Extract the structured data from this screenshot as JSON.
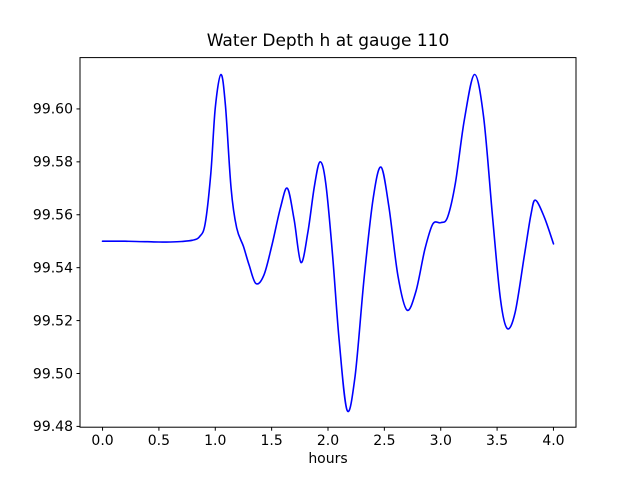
{
  "chart_data": {
    "type": "line",
    "title": "Water Depth h at gauge 110",
    "xlabel": "hours",
    "ylabel": "",
    "xlim": [
      -0.2,
      4.2
    ],
    "ylim": [
      99.4797,
      99.6194
    ],
    "xticks": [
      0.0,
      0.5,
      1.0,
      1.5,
      2.0,
      2.5,
      3.0,
      3.5,
      4.0
    ],
    "xtick_labels": [
      "0.0",
      "0.5",
      "1.0",
      "1.5",
      "2.0",
      "2.5",
      "3.0",
      "3.5",
      "4.0"
    ],
    "yticks": [
      99.48,
      99.5,
      99.52,
      99.54,
      99.56,
      99.58,
      99.6
    ],
    "ytick_labels": [
      "99.48",
      "99.50",
      "99.52",
      "99.54",
      "99.56",
      "99.58",
      "99.60"
    ],
    "grid": false,
    "legend": null,
    "line_color": "#0000ff",
    "line_width": 1.6,
    "axis_color": "#000000",
    "background_color": "#ffffff",
    "series": [
      {
        "name": "h",
        "points": [
          [
            0.0,
            99.55
          ],
          [
            0.1,
            99.55
          ],
          [
            0.2,
            99.55
          ],
          [
            0.3,
            99.5499
          ],
          [
            0.4,
            99.5498
          ],
          [
            0.5,
            99.5497
          ],
          [
            0.6,
            99.5497
          ],
          [
            0.7,
            99.5499
          ],
          [
            0.8,
            99.5504
          ],
          [
            0.86,
            99.5517
          ],
          [
            0.91,
            99.5565
          ],
          [
            0.96,
            99.5755
          ],
          [
            1.0,
            99.6005
          ],
          [
            1.05,
            99.613
          ],
          [
            1.09,
            99.6015
          ],
          [
            1.14,
            99.57
          ],
          [
            1.19,
            99.555
          ],
          [
            1.25,
            99.548
          ],
          [
            1.3,
            99.541
          ],
          [
            1.36,
            99.534
          ],
          [
            1.43,
            99.537
          ],
          [
            1.5,
            99.548
          ],
          [
            1.58,
            99.563
          ],
          [
            1.64,
            99.57
          ],
          [
            1.7,
            99.558
          ],
          [
            1.76,
            99.542
          ],
          [
            1.82,
            99.553
          ],
          [
            1.88,
            99.571
          ],
          [
            1.93,
            99.58
          ],
          [
            1.98,
            99.572
          ],
          [
            2.04,
            99.545
          ],
          [
            2.1,
            99.512
          ],
          [
            2.17,
            99.486
          ],
          [
            2.24,
            99.499
          ],
          [
            2.32,
            99.536
          ],
          [
            2.4,
            99.566
          ],
          [
            2.47,
            99.578
          ],
          [
            2.54,
            99.563
          ],
          [
            2.62,
            99.537
          ],
          [
            2.7,
            99.524
          ],
          [
            2.78,
            99.531
          ],
          [
            2.86,
            99.547
          ],
          [
            2.93,
            99.5565
          ],
          [
            3.0,
            99.557
          ],
          [
            3.06,
            99.559
          ],
          [
            3.13,
            99.572
          ],
          [
            3.21,
            99.596
          ],
          [
            3.3,
            99.613
          ],
          [
            3.38,
            99.597
          ],
          [
            3.46,
            99.559
          ],
          [
            3.53,
            99.528
          ],
          [
            3.59,
            99.517
          ],
          [
            3.66,
            99.523
          ],
          [
            3.74,
            99.544
          ],
          [
            3.8,
            99.56
          ],
          [
            3.84,
            99.5655
          ],
          [
            3.92,
            99.559
          ],
          [
            4.0,
            99.549
          ]
        ]
      }
    ]
  }
}
